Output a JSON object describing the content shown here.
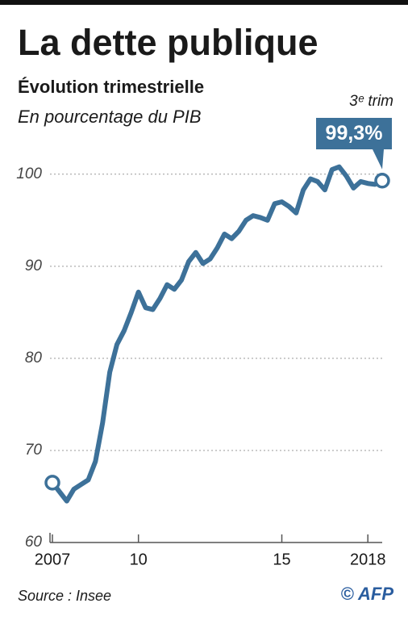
{
  "chart_data": {
    "type": "line",
    "title": "La dette publique",
    "subtitle": "Évolution trimestrielle",
    "y_label": "En pourcentage du PIB",
    "annotation": "3ᵉ trim",
    "source": "Source : Insee",
    "credit": "© AFP",
    "x": [
      2007,
      2007.25,
      2007.5,
      2007.75,
      2008,
      2008.25,
      2008.5,
      2008.75,
      2009,
      2009.25,
      2009.5,
      2009.75,
      2010,
      2010.25,
      2010.5,
      2010.75,
      2011,
      2011.25,
      2011.5,
      2011.75,
      2012,
      2012.25,
      2012.5,
      2012.75,
      2013,
      2013.25,
      2013.5,
      2013.75,
      2014,
      2014.25,
      2014.5,
      2014.75,
      2015,
      2015.25,
      2015.5,
      2015.75,
      2016,
      2016.25,
      2016.5,
      2016.75,
      2017,
      2017.25,
      2017.5,
      2017.75,
      2018,
      2018.25,
      2018.5
    ],
    "series": [
      {
        "name": "Dette publique",
        "color": "#3d7199",
        "values": [
          66.5,
          65.5,
          64.5,
          65.8,
          66.3,
          66.8,
          68.8,
          73,
          78.5,
          81.5,
          83,
          85,
          87.2,
          85.5,
          85.3,
          86.5,
          88,
          87.5,
          88.5,
          90.5,
          91.5,
          90.3,
          90.8,
          92,
          93.5,
          93,
          93.8,
          95,
          95.5,
          95.3,
          95,
          96.8,
          97,
          96.5,
          95.8,
          98.3,
          99.5,
          99.2,
          98.3,
          100.5,
          100.8,
          99.8,
          98.5,
          99.2,
          99,
          98.9,
          99.3
        ],
        "value_labels": [
          null,
          null,
          null,
          null,
          null,
          null,
          null,
          null,
          null,
          null,
          null,
          null,
          null,
          null,
          null,
          null,
          null,
          null,
          null,
          null,
          null,
          null,
          null,
          null,
          null,
          null,
          null,
          null,
          null,
          null,
          null,
          null,
          null,
          null,
          null,
          null,
          null,
          null,
          null,
          null,
          null,
          null,
          null,
          null,
          null,
          null,
          "99,3%"
        ]
      }
    ],
    "xlim": [
      2007,
      2018.5
    ],
    "xticks": [
      2007,
      {
        "value": 2010,
        "label": "10"
      },
      {
        "value": 2015,
        "label": "15"
      },
      2018
    ],
    "ylim": [
      60,
      102
    ],
    "yticks": [
      60,
      70,
      80,
      90,
      100
    ],
    "grid": true
  }
}
